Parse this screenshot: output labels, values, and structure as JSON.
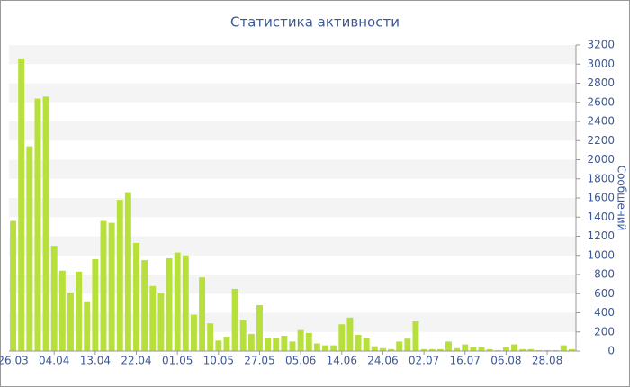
{
  "chart_data": {
    "type": "bar",
    "title": "Статистика активности",
    "y_axis_label": "Сообщений",
    "categories": [
      "26.03",
      null,
      null,
      null,
      null,
      "04.04",
      null,
      null,
      null,
      null,
      "13.04",
      null,
      null,
      null,
      null,
      "22.04",
      null,
      null,
      null,
      null,
      "01.05",
      null,
      null,
      null,
      null,
      "10.05",
      null,
      null,
      null,
      null,
      "27.05",
      null,
      null,
      null,
      null,
      "05.06",
      null,
      null,
      null,
      null,
      "14.06",
      null,
      null,
      null,
      null,
      "24.06",
      null,
      null,
      null,
      null,
      "02.07",
      null,
      null,
      null,
      null,
      "16.07",
      null,
      null,
      null,
      null,
      "06.08",
      null,
      null,
      null,
      null,
      "28.08",
      null,
      null,
      null
    ],
    "values": [
      1360,
      3050,
      2140,
      2640,
      2660,
      1100,
      840,
      610,
      830,
      520,
      960,
      1360,
      1340,
      1580,
      1660,
      1130,
      950,
      680,
      610,
      970,
      1030,
      1000,
      380,
      770,
      290,
      110,
      150,
      650,
      320,
      180,
      480,
      140,
      140,
      160,
      100,
      220,
      190,
      80,
      60,
      60,
      280,
      350,
      170,
      140,
      50,
      30,
      20,
      100,
      130,
      310,
      20,
      20,
      20,
      100,
      30,
      70,
      40,
      40,
      20,
      10,
      40,
      70,
      20,
      20,
      10,
      10,
      10,
      60,
      20
    ],
    "color": "#b8e03c",
    "ylim": [
      0,
      3200
    ],
    "yticks": [
      0,
      200,
      400,
      600,
      800,
      1000,
      1200,
      1400,
      1600,
      1800,
      2000,
      2200,
      2400,
      2600,
      2800,
      3000,
      3200
    ],
    "grid": true,
    "y_axis_side": "right"
  }
}
